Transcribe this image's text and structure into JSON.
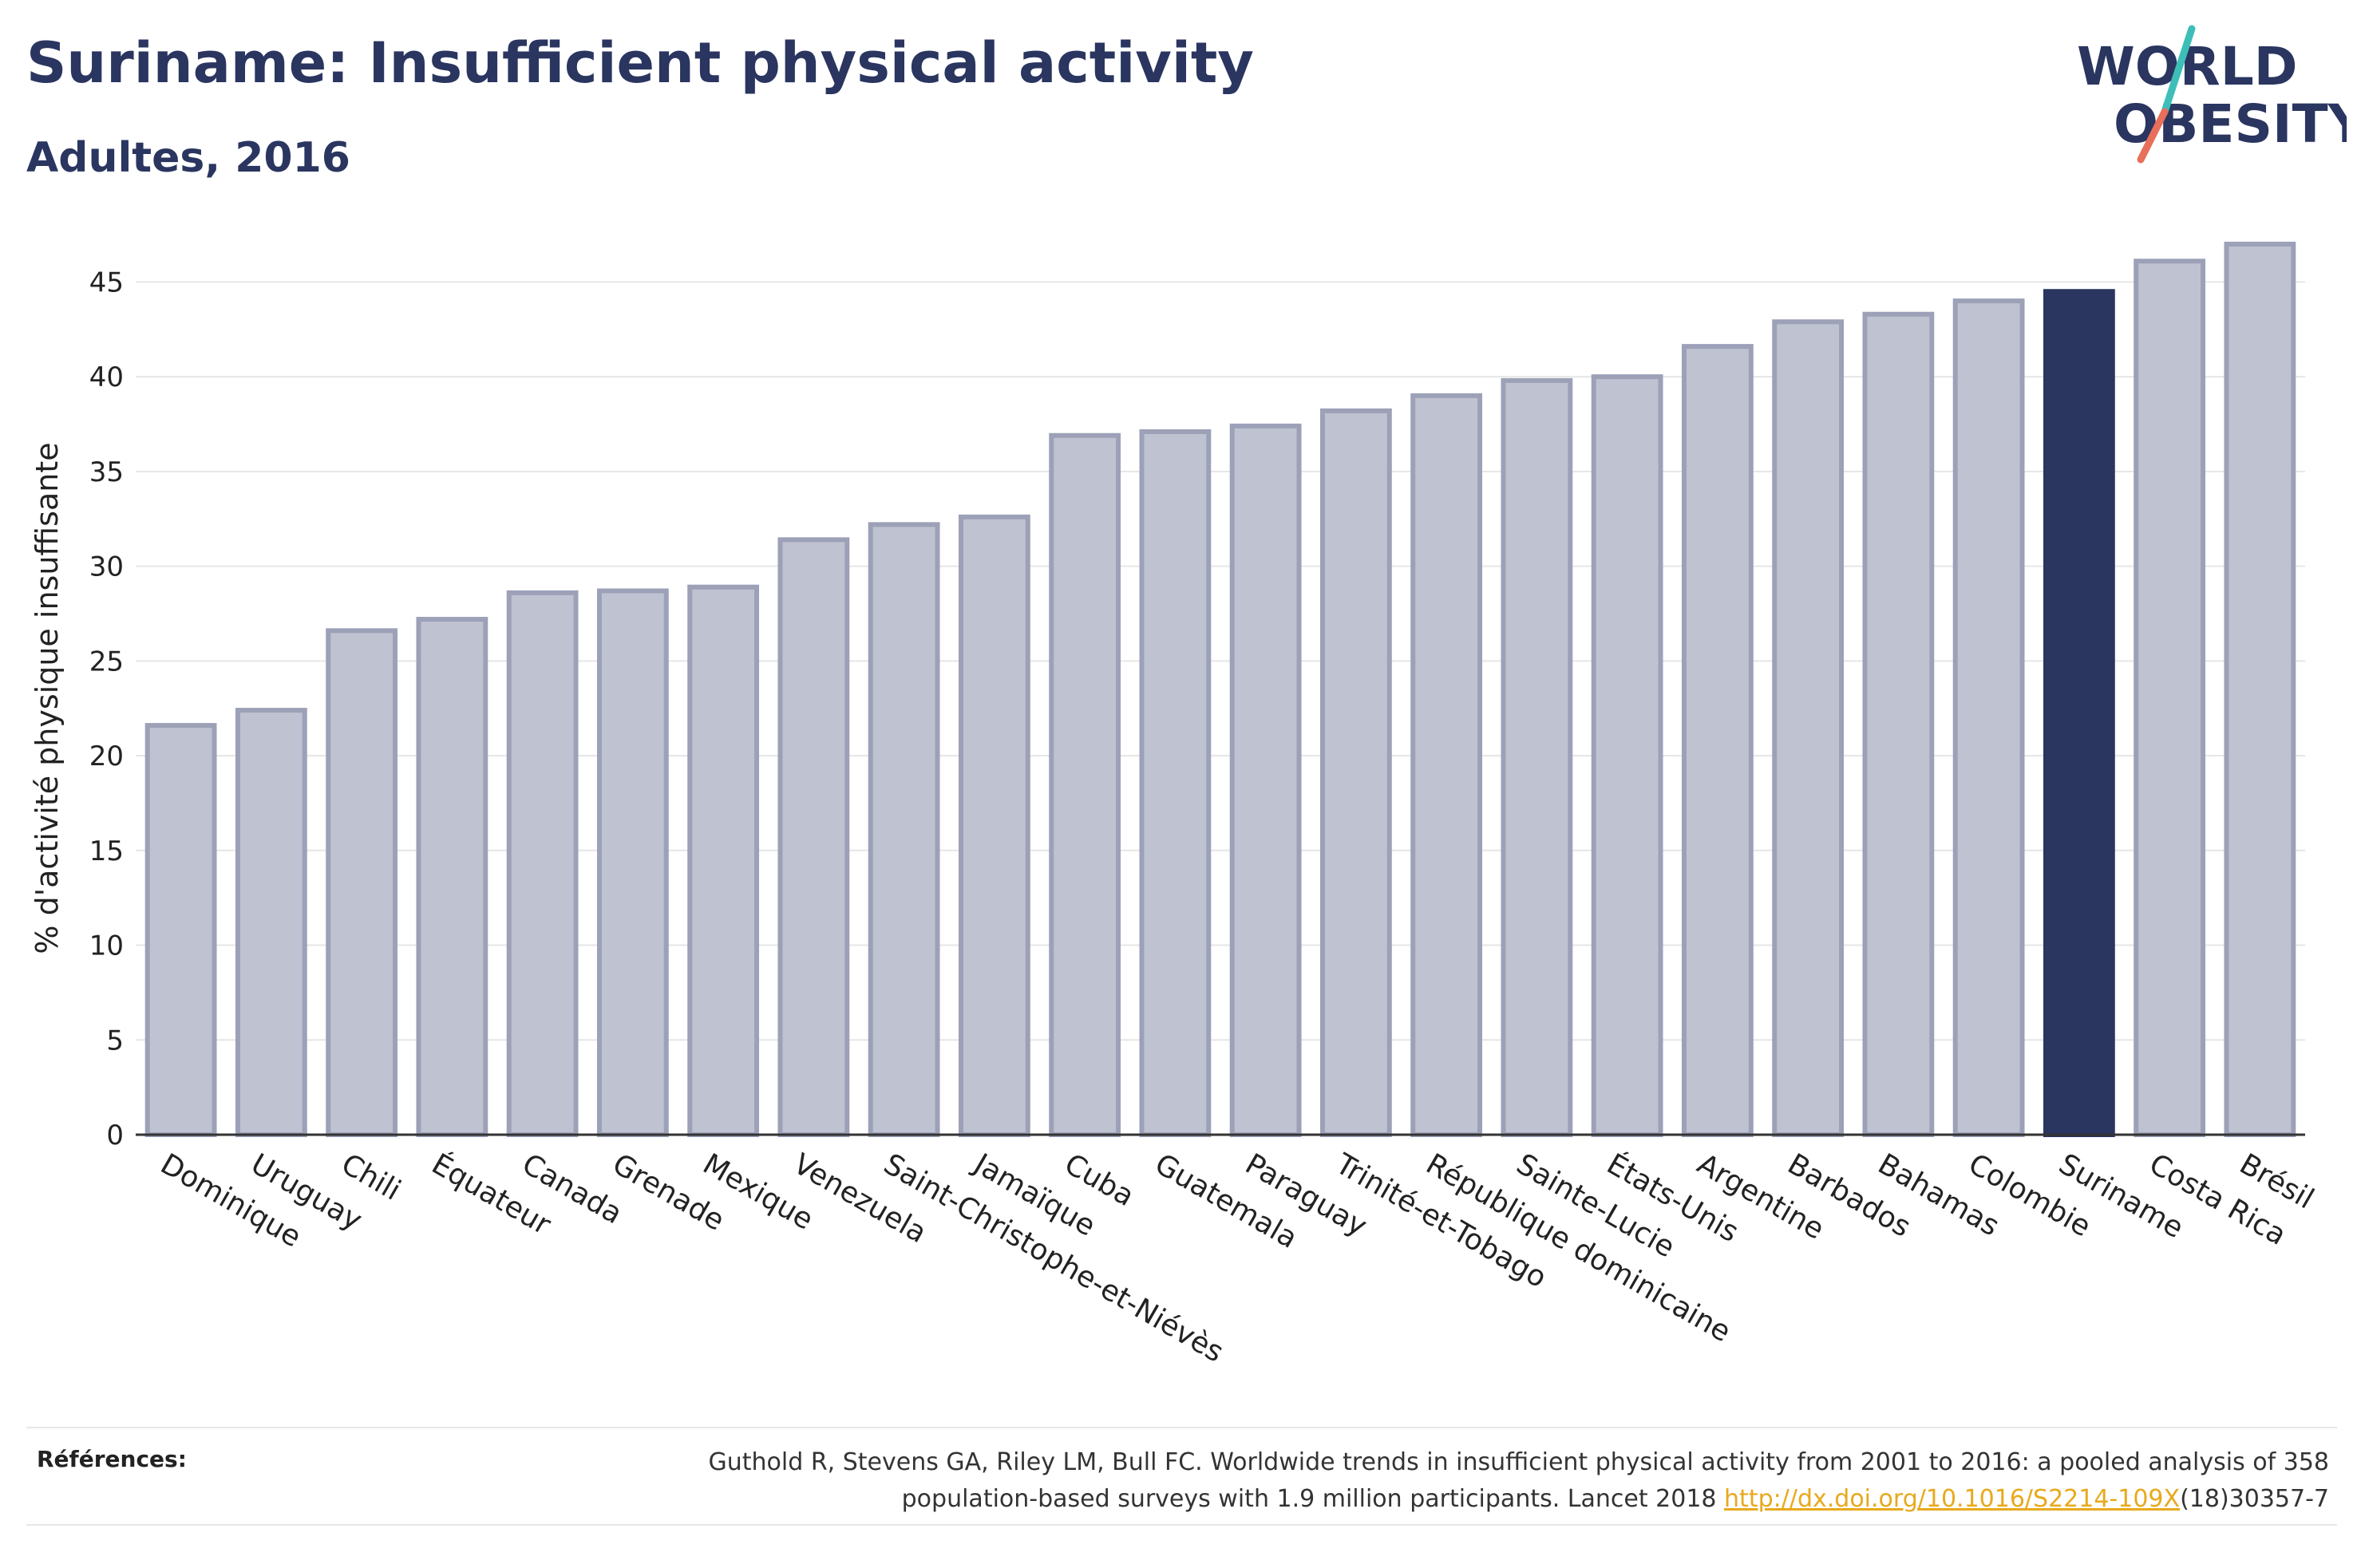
{
  "header": {
    "title": "Suriname: Insufficient physical activity",
    "subtitle": "Adultes, 2016"
  },
  "logo": {
    "line1": "WORLD",
    "line2": "OBESITY"
  },
  "colors": {
    "bar": "#bfc2d0",
    "bar_stroke": "#9ca1b8",
    "highlight": "#2a3560",
    "text": "#2a3560",
    "accent_teal": "#3dbfb8",
    "accent_coral": "#e86f5a"
  },
  "chart_data": {
    "type": "bar",
    "categories": [
      "Dominique",
      "Uruguay",
      "Chili",
      "Équateur",
      "Canada",
      "Grenade",
      "Mexique",
      "Venezuela",
      "Saint-Christophe-et-Niévès",
      "Jamaïque",
      "Cuba",
      "Guatemala",
      "Paraguay",
      "Trinité-et-Tobago",
      "République dominicaine",
      "Sainte-Lucie",
      "États-Unis",
      "Argentine",
      "Barbados",
      "Bahamas",
      "Colombie",
      "Suriname",
      "Costa Rica",
      "Brésil"
    ],
    "values": [
      21.6,
      22.4,
      26.6,
      27.2,
      28.6,
      28.7,
      28.9,
      31.4,
      32.2,
      32.6,
      36.9,
      37.1,
      37.4,
      38.2,
      39.0,
      39.8,
      40.0,
      41.6,
      42.9,
      43.3,
      44.0,
      44.5,
      46.1,
      47.0
    ],
    "highlight": "Suriname",
    "ylabel": "% d'activité physique insuffisante",
    "yticks": [
      0,
      5,
      10,
      15,
      20,
      25,
      30,
      35,
      40,
      45
    ],
    "ylim": [
      0,
      47.5
    ],
    "grid": true
  },
  "references": {
    "label": "Références:",
    "text_line1": "Guthold R, Stevens GA, Riley LM, Bull FC. Worldwide trends in insufficient physical activity from 2001 to 2016: a pooled analysis of 358",
    "text_line2_prefix": "population-based surveys with 1.9 million participants. Lancet 2018 ",
    "link": "http://dx.doi.org/10.1016/S2214-109X",
    "text_line2_suffix": "(18)30357-7"
  }
}
